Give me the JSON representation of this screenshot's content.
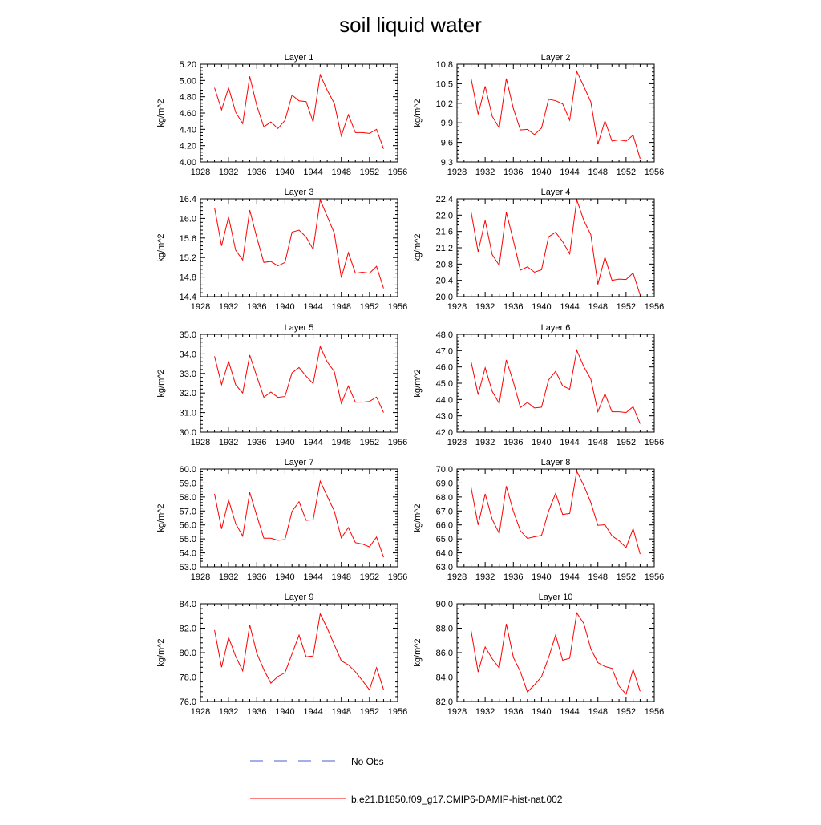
{
  "title": "soil liquid water",
  "legend": {
    "no_obs_label": "No Obs",
    "model_label": "b.e21.B1850.f09_g17.CMIP6-DAMIP-hist-nat.002",
    "no_obs_color": "#4a5fd0",
    "model_color": "#ff0000"
  },
  "chart_data": [
    {
      "type": "line",
      "title": "Layer 1",
      "ylabel": "kg/m^2",
      "xlim": [
        1928,
        1956
      ],
      "xticks": [
        1928,
        1932,
        1936,
        1940,
        1944,
        1948,
        1952,
        1956
      ],
      "ylim": [
        4.0,
        5.2
      ],
      "yticks": [
        "4.00",
        "4.20",
        "4.40",
        "4.60",
        "4.80",
        "5.00",
        "5.20"
      ],
      "series": [
        {
          "color": "#ff0000",
          "x": [
            1930,
            1931,
            1932,
            1933,
            1934,
            1935,
            1936,
            1937,
            1938,
            1939,
            1940,
            1941,
            1942,
            1943,
            1944,
            1945,
            1946,
            1947,
            1948,
            1949,
            1950,
            1951,
            1952,
            1953,
            1954
          ],
          "y": [
            4.91,
            4.64,
            4.91,
            4.61,
            4.47,
            5.05,
            4.69,
            4.43,
            4.49,
            4.41,
            4.51,
            4.82,
            4.75,
            4.74,
            4.49,
            5.07,
            4.88,
            4.72,
            4.32,
            4.58,
            4.36,
            4.36,
            4.35,
            4.4,
            4.16
          ]
        }
      ]
    },
    {
      "type": "line",
      "title": "Layer 2",
      "ylabel": "kg/m^2",
      "xlim": [
        1928,
        1956
      ],
      "xticks": [
        1928,
        1932,
        1936,
        1940,
        1944,
        1948,
        1952,
        1956
      ],
      "ylim": [
        9.3,
        10.8
      ],
      "yticks": [
        "9.3",
        "9.6",
        "9.9",
        "10.2",
        "10.5",
        "10.8"
      ],
      "series": [
        {
          "color": "#ff0000",
          "x": [
            1930,
            1931,
            1932,
            1933,
            1934,
            1935,
            1936,
            1937,
            1938,
            1939,
            1940,
            1941,
            1942,
            1943,
            1944,
            1945,
            1946,
            1947,
            1948,
            1949,
            1950,
            1951,
            1952,
            1953,
            1954
          ],
          "y": [
            10.58,
            10.03,
            10.46,
            10.0,
            9.82,
            10.58,
            10.12,
            9.79,
            9.8,
            9.72,
            9.82,
            10.26,
            10.24,
            10.19,
            9.94,
            10.69,
            10.46,
            10.22,
            9.57,
            9.93,
            9.62,
            9.64,
            9.62,
            9.71,
            9.35
          ]
        }
      ]
    },
    {
      "type": "line",
      "title": "Layer 3",
      "ylabel": "kg/m^2",
      "xlim": [
        1928,
        1956
      ],
      "xticks": [
        1928,
        1932,
        1936,
        1940,
        1944,
        1948,
        1952,
        1956
      ],
      "ylim": [
        14.4,
        16.4
      ],
      "yticks": [
        "14.4",
        "14.8",
        "15.2",
        "15.6",
        "16.0",
        "16.4"
      ],
      "series": [
        {
          "color": "#ff0000",
          "x": [
            1930,
            1931,
            1932,
            1933,
            1934,
            1935,
            1936,
            1937,
            1938,
            1939,
            1940,
            1941,
            1942,
            1943,
            1944,
            1945,
            1946,
            1947,
            1948,
            1949,
            1950,
            1951,
            1952,
            1953,
            1954
          ],
          "y": [
            16.22,
            15.44,
            16.03,
            15.35,
            15.15,
            16.17,
            15.61,
            15.1,
            15.12,
            15.03,
            15.1,
            15.72,
            15.76,
            15.62,
            15.37,
            16.38,
            16.04,
            15.7,
            14.79,
            15.3,
            14.88,
            14.9,
            14.88,
            15.02,
            14.57
          ]
        }
      ]
    },
    {
      "type": "line",
      "title": "Layer 4",
      "ylabel": "kg/m^2",
      "xlim": [
        1928,
        1956
      ],
      "xticks": [
        1928,
        1932,
        1936,
        1940,
        1944,
        1948,
        1952,
        1956
      ],
      "ylim": [
        20.0,
        22.4
      ],
      "yticks": [
        "20.0",
        "20.4",
        "20.8",
        "21.2",
        "21.6",
        "22.0",
        "22.4"
      ],
      "series": [
        {
          "color": "#ff0000",
          "x": [
            1930,
            1931,
            1932,
            1933,
            1934,
            1935,
            1936,
            1937,
            1938,
            1939,
            1940,
            1941,
            1942,
            1943,
            1944,
            1945,
            1946,
            1947,
            1948,
            1949,
            1950,
            1951,
            1952,
            1953,
            1954
          ],
          "y": [
            22.08,
            21.1,
            21.87,
            21.03,
            20.77,
            22.07,
            21.38,
            20.65,
            20.73,
            20.6,
            20.66,
            21.47,
            21.58,
            21.35,
            21.05,
            22.38,
            21.87,
            21.52,
            20.3,
            20.97,
            20.4,
            20.43,
            20.42,
            20.58,
            20.04
          ]
        }
      ]
    },
    {
      "type": "line",
      "title": "Layer 5",
      "ylabel": "kg/m^2",
      "xlim": [
        1928,
        1956
      ],
      "xticks": [
        1928,
        1932,
        1936,
        1940,
        1944,
        1948,
        1952,
        1956
      ],
      "ylim": [
        30.0,
        35.0
      ],
      "yticks": [
        "30.0",
        "31.0",
        "32.0",
        "33.0",
        "34.0",
        "35.0"
      ],
      "series": [
        {
          "color": "#ff0000",
          "x": [
            1930,
            1931,
            1932,
            1933,
            1934,
            1935,
            1936,
            1937,
            1938,
            1939,
            1940,
            1941,
            1942,
            1943,
            1944,
            1945,
            1946,
            1947,
            1948,
            1949,
            1950,
            1951,
            1952,
            1953,
            1954
          ],
          "y": [
            33.88,
            32.43,
            33.62,
            32.42,
            32.0,
            33.94,
            32.85,
            31.78,
            32.05,
            31.78,
            31.82,
            33.03,
            33.3,
            32.86,
            32.48,
            34.38,
            33.59,
            33.1,
            31.47,
            32.36,
            31.53,
            31.53,
            31.57,
            31.79,
            31.0
          ]
        }
      ]
    },
    {
      "type": "line",
      "title": "Layer 6",
      "ylabel": "kg/m^2",
      "xlim": [
        1928,
        1956
      ],
      "xticks": [
        1928,
        1932,
        1936,
        1940,
        1944,
        1948,
        1952,
        1956
      ],
      "ylim": [
        42.0,
        48.0
      ],
      "yticks": [
        "42.0",
        "43.0",
        "44.0",
        "45.0",
        "46.0",
        "47.0",
        "48.0"
      ],
      "series": [
        {
          "color": "#ff0000",
          "x": [
            1930,
            1931,
            1932,
            1933,
            1934,
            1935,
            1936,
            1937,
            1938,
            1939,
            1940,
            1941,
            1942,
            1943,
            1944,
            1945,
            1946,
            1947,
            1948,
            1949,
            1950,
            1951,
            1952,
            1953,
            1954
          ],
          "y": [
            46.33,
            44.3,
            45.95,
            44.5,
            43.75,
            46.43,
            45.08,
            43.51,
            43.82,
            43.48,
            43.53,
            45.2,
            45.73,
            44.84,
            44.63,
            47.03,
            46.02,
            45.25,
            43.25,
            44.35,
            43.25,
            43.25,
            43.2,
            43.56,
            42.52
          ]
        }
      ]
    },
    {
      "type": "line",
      "title": "Layer 7",
      "ylabel": "kg/m^2",
      "xlim": [
        1928,
        1956
      ],
      "xticks": [
        1928,
        1932,
        1936,
        1940,
        1944,
        1948,
        1952,
        1956
      ],
      "ylim": [
        53.0,
        60.0
      ],
      "yticks": [
        "53.0",
        "54.0",
        "55.0",
        "56.0",
        "57.0",
        "58.0",
        "59.0",
        "60.0"
      ],
      "series": [
        {
          "color": "#ff0000",
          "x": [
            1930,
            1931,
            1932,
            1933,
            1934,
            1935,
            1936,
            1937,
            1938,
            1939,
            1940,
            1941,
            1942,
            1943,
            1944,
            1945,
            1946,
            1947,
            1948,
            1949,
            1950,
            1951,
            1952,
            1953,
            1954
          ],
          "y": [
            58.22,
            55.72,
            57.78,
            56.1,
            55.2,
            58.33,
            56.66,
            55.05,
            55.05,
            54.9,
            54.95,
            56.97,
            57.66,
            56.33,
            56.37,
            59.13,
            58.05,
            57.0,
            55.07,
            55.81,
            54.73,
            54.63,
            54.43,
            55.13,
            53.68
          ]
        }
      ]
    },
    {
      "type": "line",
      "title": "Layer 8",
      "ylabel": "kg/m^2",
      "xlim": [
        1928,
        1956
      ],
      "xticks": [
        1928,
        1932,
        1936,
        1940,
        1944,
        1948,
        1952,
        1956
      ],
      "ylim": [
        63.0,
        70.0
      ],
      "yticks": [
        "63.0",
        "64.0",
        "65.0",
        "66.0",
        "67.0",
        "68.0",
        "69.0",
        "70.0"
      ],
      "series": [
        {
          "color": "#ff0000",
          "x": [
            1930,
            1931,
            1932,
            1933,
            1934,
            1935,
            1936,
            1937,
            1938,
            1939,
            1940,
            1941,
            1942,
            1943,
            1944,
            1945,
            1946,
            1947,
            1948,
            1949,
            1950,
            1951,
            1952,
            1953,
            1954
          ],
          "y": [
            68.68,
            66.0,
            68.22,
            66.4,
            65.38,
            68.77,
            66.98,
            65.58,
            65.04,
            65.15,
            65.25,
            66.98,
            68.26,
            66.75,
            66.82,
            69.85,
            68.82,
            67.6,
            65.97,
            66.01,
            65.22,
            64.87,
            64.38,
            65.73,
            63.91
          ]
        }
      ]
    },
    {
      "type": "line",
      "title": "Layer 9",
      "ylabel": "kg/m^2",
      "xlim": [
        1928,
        1956
      ],
      "xticks": [
        1928,
        1932,
        1936,
        1940,
        1944,
        1948,
        1952,
        1956
      ],
      "ylim": [
        76.0,
        84.0
      ],
      "yticks": [
        "76.0",
        "78.0",
        "80.0",
        "82.0",
        "84.0"
      ],
      "series": [
        {
          "color": "#ff0000",
          "x": [
            1930,
            1931,
            1932,
            1933,
            1934,
            1935,
            1936,
            1937,
            1938,
            1939,
            1940,
            1941,
            1942,
            1943,
            1944,
            1945,
            1946,
            1947,
            1948,
            1949,
            1950,
            1951,
            1952,
            1953,
            1954
          ],
          "y": [
            81.85,
            78.8,
            81.24,
            79.7,
            78.5,
            82.27,
            79.95,
            78.6,
            77.5,
            78.05,
            78.35,
            79.9,
            81.43,
            79.66,
            79.73,
            83.18,
            82.0,
            80.65,
            79.33,
            79.0,
            78.43,
            77.71,
            76.95,
            78.76,
            76.98
          ]
        }
      ]
    },
    {
      "type": "line",
      "title": "Layer 10",
      "ylabel": "kg/m^2",
      "xlim": [
        1928,
        1956
      ],
      "xticks": [
        1928,
        1932,
        1936,
        1940,
        1944,
        1948,
        1952,
        1956
      ],
      "ylim": [
        82.0,
        90.0
      ],
      "yticks": [
        "82.0",
        "84.0",
        "86.0",
        "88.0",
        "90.0"
      ],
      "series": [
        {
          "color": "#ff0000",
          "x": [
            1930,
            1931,
            1932,
            1933,
            1934,
            1935,
            1936,
            1937,
            1938,
            1939,
            1940,
            1941,
            1942,
            1943,
            1944,
            1945,
            1946,
            1947,
            1948,
            1949,
            1950,
            1951,
            1952,
            1953,
            1954
          ],
          "y": [
            87.8,
            84.41,
            86.47,
            85.5,
            84.74,
            88.35,
            85.62,
            84.43,
            82.78,
            83.36,
            84.03,
            85.58,
            87.44,
            85.38,
            85.54,
            89.25,
            88.39,
            86.31,
            85.18,
            84.86,
            84.71,
            83.26,
            82.59,
            84.62,
            82.83
          ]
        }
      ]
    }
  ]
}
